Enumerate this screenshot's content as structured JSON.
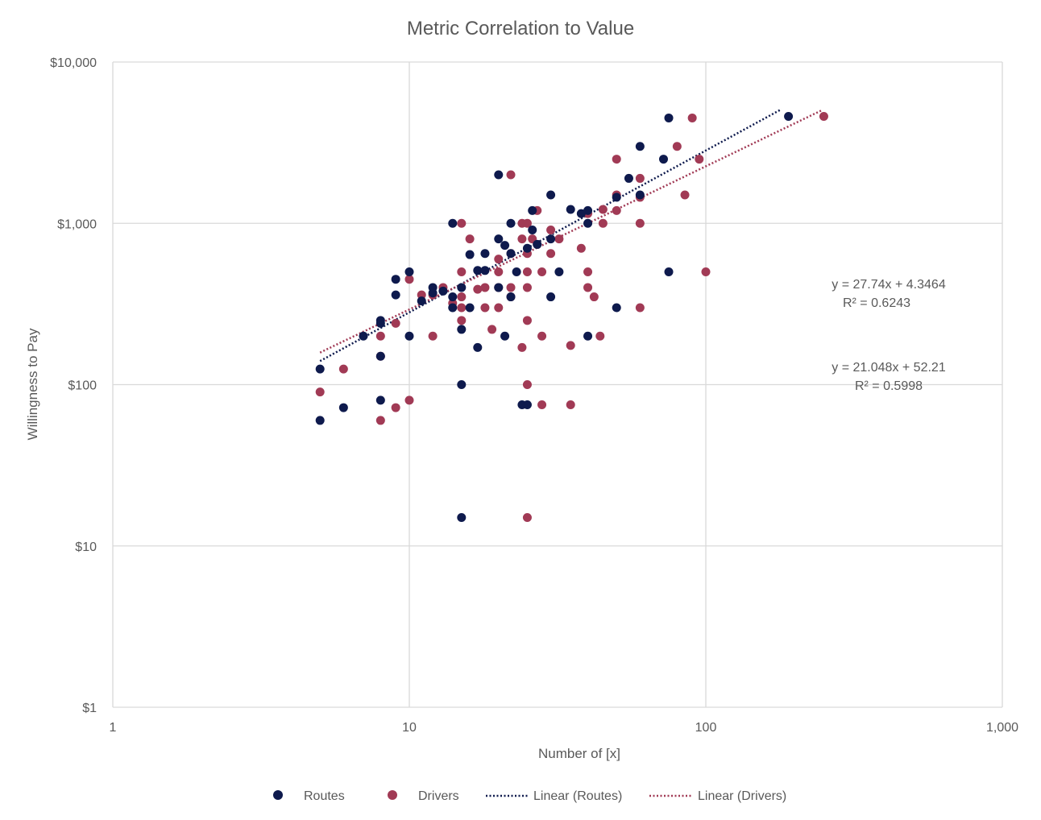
{
  "chart_data": {
    "type": "scatter",
    "title": "Metric Correlation to Value",
    "xlabel": "Number of [x]",
    "ylabel": "Willingness to Pay",
    "x_scale": "log",
    "y_scale": "log",
    "xlim": [
      1,
      1000
    ],
    "ylim": [
      1,
      10000
    ],
    "x_ticks": [
      1,
      10,
      100,
      1000
    ],
    "x_tick_labels": [
      "1",
      "10",
      "100",
      "1,000"
    ],
    "y_ticks": [
      1,
      10,
      100,
      1000,
      10000
    ],
    "y_tick_labels": [
      "$1",
      "$10",
      "$100",
      "$1,000",
      "$10,000"
    ],
    "grid": true,
    "legend_position": "bottom",
    "series": [
      {
        "name": "Routes",
        "color": "#0e1a4d",
        "points": [
          [
            5,
            125
          ],
          [
            5,
            60
          ],
          [
            6,
            72
          ],
          [
            7,
            200
          ],
          [
            8,
            250
          ],
          [
            8,
            240
          ],
          [
            8,
            150
          ],
          [
            8,
            80
          ],
          [
            9,
            450
          ],
          [
            9,
            360
          ],
          [
            10,
            500
          ],
          [
            10,
            200
          ],
          [
            11,
            330
          ],
          [
            12,
            400
          ],
          [
            12,
            370
          ],
          [
            13,
            380
          ],
          [
            14,
            1000
          ],
          [
            14,
            300
          ],
          [
            14,
            350
          ],
          [
            15,
            400
          ],
          [
            15,
            220
          ],
          [
            15,
            100
          ],
          [
            15,
            15
          ],
          [
            16,
            640
          ],
          [
            16,
            300
          ],
          [
            17,
            510
          ],
          [
            17,
            170
          ],
          [
            18,
            510
          ],
          [
            18,
            650
          ],
          [
            20,
            2000
          ],
          [
            20,
            800
          ],
          [
            20,
            400
          ],
          [
            21,
            730
          ],
          [
            21,
            200
          ],
          [
            22,
            1000
          ],
          [
            22,
            650
          ],
          [
            22,
            350
          ],
          [
            23,
            500
          ],
          [
            24,
            75
          ],
          [
            25,
            700
          ],
          [
            25,
            75
          ],
          [
            26,
            1200
          ],
          [
            26,
            910
          ],
          [
            27,
            740
          ],
          [
            30,
            1500
          ],
          [
            30,
            800
          ],
          [
            30,
            350
          ],
          [
            32,
            500
          ],
          [
            35,
            1220
          ],
          [
            38,
            1150
          ],
          [
            40,
            1200
          ],
          [
            40,
            1000
          ],
          [
            40,
            200
          ],
          [
            50,
            1450
          ],
          [
            50,
            300
          ],
          [
            55,
            1900
          ],
          [
            60,
            3000
          ],
          [
            60,
            1500
          ],
          [
            72,
            2500
          ],
          [
            75,
            4500
          ],
          [
            75,
            500
          ],
          [
            190,
            4600
          ]
        ]
      },
      {
        "name": "Drivers",
        "color": "#a13a55",
        "points": [
          [
            5,
            90
          ],
          [
            6,
            125
          ],
          [
            8,
            200
          ],
          [
            8,
            150
          ],
          [
            8,
            60
          ],
          [
            9,
            240
          ],
          [
            9,
            72
          ],
          [
            10,
            450
          ],
          [
            10,
            80
          ],
          [
            11,
            360
          ],
          [
            12,
            360
          ],
          [
            12,
            200
          ],
          [
            13,
            400
          ],
          [
            14,
            320
          ],
          [
            15,
            1000
          ],
          [
            15,
            500
          ],
          [
            15,
            350
          ],
          [
            15,
            300
          ],
          [
            15,
            250
          ],
          [
            16,
            800
          ],
          [
            17,
            390
          ],
          [
            18,
            400
          ],
          [
            18,
            300
          ],
          [
            19,
            220
          ],
          [
            20,
            600
          ],
          [
            20,
            500
          ],
          [
            20,
            400
          ],
          [
            20,
            300
          ],
          [
            22,
            2000
          ],
          [
            22,
            650
          ],
          [
            22,
            400
          ],
          [
            22,
            350
          ],
          [
            24,
            1000
          ],
          [
            24,
            800
          ],
          [
            24,
            170
          ],
          [
            25,
            1000
          ],
          [
            25,
            650
          ],
          [
            25,
            500
          ],
          [
            25,
            400
          ],
          [
            25,
            250
          ],
          [
            25,
            100
          ],
          [
            25,
            15
          ],
          [
            26,
            800
          ],
          [
            27,
            1200
          ],
          [
            27,
            740
          ],
          [
            28,
            500
          ],
          [
            28,
            200
          ],
          [
            28,
            75
          ],
          [
            30,
            910
          ],
          [
            30,
            650
          ],
          [
            32,
            800
          ],
          [
            35,
            175
          ],
          [
            35,
            75
          ],
          [
            38,
            700
          ],
          [
            40,
            1150
          ],
          [
            40,
            500
          ],
          [
            40,
            400
          ],
          [
            42,
            350
          ],
          [
            44,
            200
          ],
          [
            45,
            1220
          ],
          [
            45,
            1000
          ],
          [
            50,
            2500
          ],
          [
            50,
            1500
          ],
          [
            50,
            1200
          ],
          [
            60,
            1900
          ],
          [
            60,
            1450
          ],
          [
            60,
            1000
          ],
          [
            60,
            300
          ],
          [
            80,
            3000
          ],
          [
            85,
            1500
          ],
          [
            90,
            4500
          ],
          [
            95,
            2500
          ],
          [
            100,
            500
          ],
          [
            250,
            4600
          ]
        ]
      },
      {
        "name": "Linear (Routes)",
        "color": "#0e1a4d",
        "line_style": "dotted",
        "points": [
          [
            5,
            140
          ],
          [
            180,
            5100
          ]
        ]
      },
      {
        "name": "Linear (Drivers)",
        "color": "#a13a55",
        "line_style": "dotted",
        "points": [
          [
            5,
            158
          ],
          [
            245,
            5000
          ]
        ]
      }
    ],
    "annotations": [
      {
        "equation": "y = 27.74x + 4.3464",
        "r2": "R² = 0.6243"
      },
      {
        "equation": "y = 21.048x + 52.21",
        "r2": "R² = 0.5998"
      }
    ]
  }
}
